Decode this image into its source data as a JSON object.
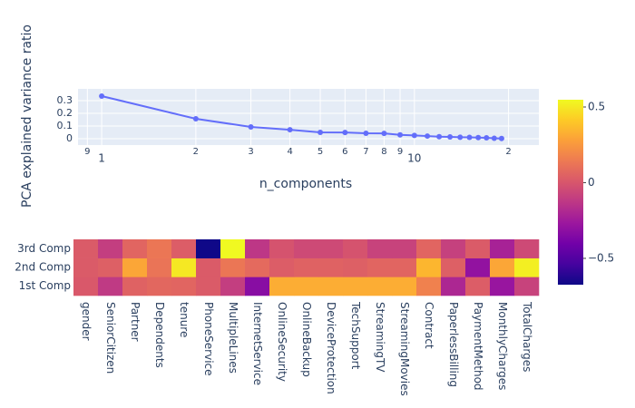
{
  "chart_data": [
    {
      "type": "line",
      "x_log": true,
      "grid": true,
      "color": "#636efa",
      "xlabel": "n_components",
      "ylabel": "PCA explained variance ratio",
      "x": [
        1,
        2,
        3,
        4,
        5,
        6,
        7,
        8,
        9,
        10,
        11,
        12,
        13,
        14,
        15,
        16,
        17,
        18,
        19
      ],
      "y": [
        0.336,
        0.157,
        0.093,
        0.071,
        0.05,
        0.049,
        0.043,
        0.042,
        0.03,
        0.026,
        0.021,
        0.016,
        0.014,
        0.012,
        0.011,
        0.009,
        0.007,
        0.004,
        0.002
      ],
      "xlim": [
        0.84,
        25
      ],
      "xticks": [
        {
          "value": 0.9,
          "label": "9"
        },
        1,
        2,
        3,
        4,
        5,
        6,
        7,
        8,
        9,
        10,
        {
          "value": 20,
          "label": "2"
        }
      ],
      "ylim": [
        -0.05,
        0.393
      ],
      "yticks": [
        0,
        0.1,
        0.2,
        0.3
      ]
    },
    {
      "type": "heatmap",
      "x": [
        "gender",
        "SeniorCitizen",
        "Partner",
        "Dependents",
        "tenure",
        "PhoneService",
        "MultipleLines",
        "InternetService",
        "OnlineSecurity",
        "OnlineBackup",
        "DeviceProtection",
        "TechSupport",
        "StreamingTV",
        "StreamingMovies",
        "Contract",
        "PaperlessBilling",
        "PaymentMethod",
        "MonthlyCharges",
        "TotalCharges"
      ],
      "y": [
        "1st Comp",
        "2nd Comp",
        "3rd Comp"
      ],
      "z": [
        [
          0.01,
          -0.12,
          0.05,
          0.07,
          0.06,
          0.02,
          -0.1,
          -0.33,
          0.32,
          0.32,
          0.32,
          0.32,
          0.32,
          0.32,
          0.17,
          -0.2,
          0.03,
          -0.28,
          -0.08
        ],
        [
          0.02,
          0.04,
          0.3,
          0.12,
          0.5,
          0.02,
          0.13,
          0.08,
          0.03,
          0.05,
          0.05,
          0.04,
          0.06,
          0.06,
          0.35,
          0.04,
          -0.3,
          0.3,
          0.52
        ],
        [
          0.02,
          -0.1,
          0.06,
          0.13,
          0.03,
          -0.67,
          0.55,
          -0.13,
          -0.01,
          -0.05,
          -0.05,
          -0.01,
          -0.08,
          -0.08,
          0.06,
          -0.09,
          0.02,
          -0.22,
          -0.05
        ]
      ],
      "colorscale": [
        "#0d0887",
        "#46039f",
        "#7201a8",
        "#9c179e",
        "#bd3786",
        "#d8576b",
        "#ed7953",
        "#fb9f3a",
        "#fdca26",
        "#f0f921"
      ],
      "zlim": [
        -0.674,
        0.548
      ],
      "zticks": [
        {
          "value": -0.5,
          "label": "−0.5"
        },
        0,
        0.5
      ]
    }
  ]
}
